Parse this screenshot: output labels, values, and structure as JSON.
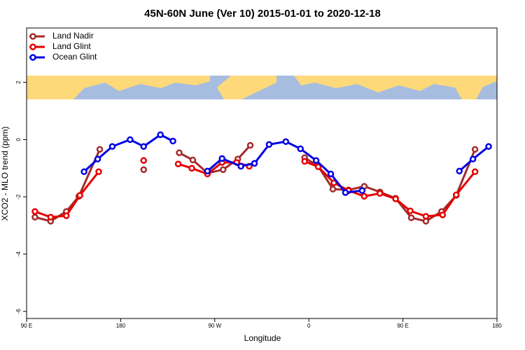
{
  "chart_data": {
    "type": "line",
    "title": "45N-60N June (Ver 10)   2015-01-01 to 2020-12-18",
    "x_label": "Longitude",
    "y_label": "XCO2 - MLO trend (ppm)",
    "xlim": [
      90,
      540
    ],
    "xticks": [
      {
        "value": 90,
        "label": "90 E"
      },
      180,
      {
        "value": 270,
        "label": "90 W"
      },
      {
        "value": 360,
        "label": "0"
      },
      {
        "value": 450,
        "label": "90 E"
      },
      {
        "value": 540,
        "label": "180"
      }
    ],
    "ylim": [
      -6.25,
      3.9
    ],
    "yticks": [
      -6,
      -4,
      -2,
      0,
      2
    ],
    "legend": "top-left",
    "series": [
      {
        "name": "Land Nadir",
        "color": "#a52a2a",
        "x": [
          98,
          113,
          128,
          140,
          160,
          null,
          202,
          null,
          236,
          249,
          263,
          278,
          292,
          304,
          null,
          356,
          369,
          383,
          398,
          413,
          428,
          443,
          458,
          472,
          487,
          501,
          519
        ],
        "values": [
          -2.71,
          -2.85,
          -2.51,
          -1.98,
          -0.34,
          null,
          -1.05,
          null,
          -0.46,
          -0.71,
          -1.17,
          -1.05,
          -0.68,
          -0.2,
          null,
          -0.63,
          -0.93,
          -1.73,
          -1.76,
          -1.63,
          -1.83,
          -2.05,
          -2.73,
          -2.85,
          -2.51,
          -1.95,
          -0.34
        ]
      },
      {
        "name": "Land Glint",
        "color": "#e60000",
        "x": [
          98,
          113,
          128,
          141,
          159,
          null,
          202,
          null,
          235,
          248,
          263,
          277,
          291,
          303,
          null,
          356,
          369,
          384,
          398,
          413,
          428,
          443,
          457,
          472,
          488,
          501,
          519
        ],
        "values": [
          -2.51,
          -2.71,
          -2.66,
          -1.95,
          -1.12,
          null,
          -0.73,
          null,
          -0.85,
          -1.0,
          -1.2,
          -0.8,
          -0.8,
          -0.93,
          null,
          -0.76,
          -0.95,
          -1.51,
          -1.78,
          -1.98,
          -1.88,
          -2.07,
          -2.49,
          -2.68,
          -2.63,
          -1.93,
          -1.12
        ]
      },
      {
        "name": "Ocean Glint",
        "color": "#0000e6",
        "x": [
          145,
          158,
          172,
          189,
          202,
          218,
          230,
          null,
          263,
          277,
          295,
          308,
          322,
          338,
          352,
          367,
          381,
          395,
          411,
          null,
          504,
          517,
          532
        ],
        "values": [
          -1.12,
          -0.68,
          -0.24,
          0,
          -0.24,
          0.17,
          -0.05,
          null,
          -1.1,
          -0.66,
          -0.93,
          -0.83,
          -0.17,
          -0.07,
          -0.32,
          -0.73,
          -1.2,
          -1.85,
          -1.78,
          null,
          -1.1,
          -0.68,
          -0.24
        ]
      }
    ]
  }
}
